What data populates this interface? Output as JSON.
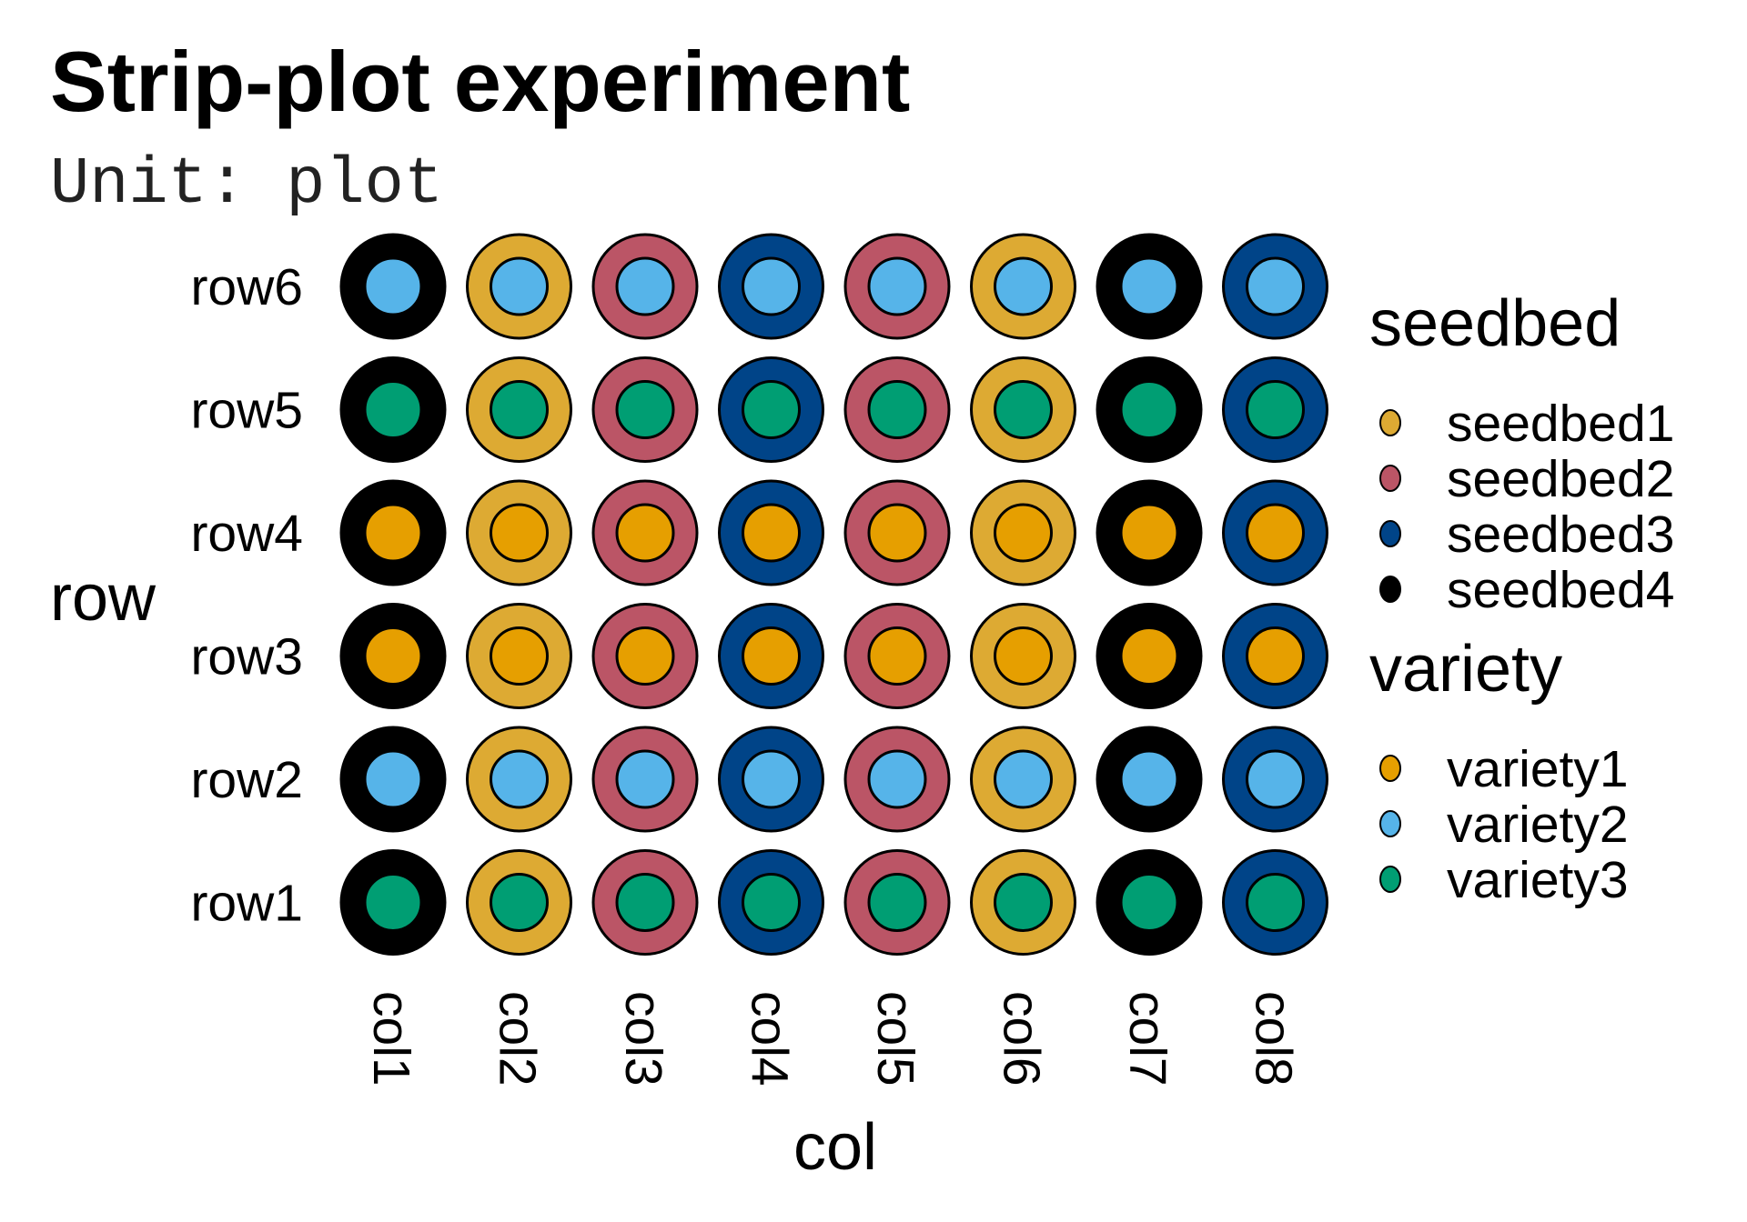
{
  "chart_data": {
    "type": "scatter",
    "title": "Strip-plot experiment",
    "subtitle": "Unit: plot",
    "xlabel": "col",
    "ylabel": "row",
    "x_categories": [
      "col1",
      "col2",
      "col3",
      "col4",
      "col5",
      "col6",
      "col7",
      "col8"
    ],
    "y_categories": [
      "row1",
      "row2",
      "row3",
      "row4",
      "row5",
      "row6"
    ],
    "grid": false,
    "legend_position": "right",
    "legends": [
      {
        "title": "seedbed",
        "entries": [
          {
            "label": "seedbed1",
            "color": "#DDAA33"
          },
          {
            "label": "seedbed2",
            "color": "#BB5566"
          },
          {
            "label": "seedbed3",
            "color": "#004488"
          },
          {
            "label": "seedbed4",
            "color": "#000000"
          }
        ]
      },
      {
        "title": "variety",
        "entries": [
          {
            "label": "variety1",
            "color": "#E69F00"
          },
          {
            "label": "variety2",
            "color": "#56B4E9"
          },
          {
            "label": "variety3",
            "color": "#009E73"
          }
        ]
      }
    ],
    "seedbed_by_col": [
      "seedbed4",
      "seedbed1",
      "seedbed2",
      "seedbed3",
      "seedbed2",
      "seedbed1",
      "seedbed4",
      "seedbed3"
    ],
    "variety_by_row": [
      "variety3",
      "variety2",
      "variety1",
      "variety1",
      "variety3",
      "variety2"
    ]
  }
}
